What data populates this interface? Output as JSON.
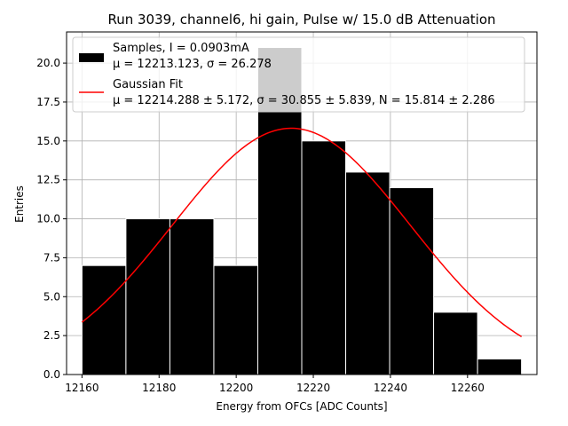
{
  "chart_data": {
    "type": "bar",
    "title": "Run 3039, channel6, hi gain, Pulse w/ 15.0 dB Attenuation",
    "xlabel": "Energy from OFCs [ADC Counts]",
    "ylabel": "Entries",
    "xlim": [
      12156,
      12278
    ],
    "ylim": [
      0,
      22
    ],
    "xticks": [
      12160,
      12180,
      12200,
      12220,
      12240,
      12260
    ],
    "yticks": [
      0,
      2.5,
      5.0,
      7.5,
      10.0,
      12.5,
      15.0,
      17.5,
      20.0
    ],
    "grid": true,
    "legend_position": "top",
    "bins": [
      {
        "x0": 12160.0,
        "x1": 12171.4,
        "value": 7
      },
      {
        "x0": 12171.4,
        "x1": 12182.8,
        "value": 10
      },
      {
        "x0": 12182.8,
        "x1": 12194.2,
        "value": 10
      },
      {
        "x0": 12194.2,
        "x1": 12205.6,
        "value": 7
      },
      {
        "x0": 12205.6,
        "x1": 12217.0,
        "value": 21
      },
      {
        "x0": 12217.0,
        "x1": 12228.4,
        "value": 15
      },
      {
        "x0": 12228.4,
        "x1": 12239.8,
        "value": 13
      },
      {
        "x0": 12239.8,
        "x1": 12251.2,
        "value": 12
      },
      {
        "x0": 12251.2,
        "x1": 12262.6,
        "value": 4
      },
      {
        "x0": 12262.6,
        "x1": 12274.0,
        "value": 1
      }
    ],
    "fit": {
      "type": "gaussian",
      "mu": 12214.288,
      "sigma": 30.855,
      "amplitude": 15.814,
      "x_range": [
        12160,
        12274
      ]
    },
    "series": [
      {
        "name": "Samples, I = 0.0903mA",
        "color": "#000000",
        "kind": "histogram"
      },
      {
        "name": "Gaussian Fit",
        "color": "#ff0000",
        "kind": "line"
      }
    ],
    "legend": [
      {
        "line1": "Samples, I = 0.0903mA",
        "line2": "μ = 12213.123, σ = 26.278"
      },
      {
        "line1": "Gaussian Fit",
        "line2": "μ = 12214.288 ± 5.172, σ = 30.855 ± 5.839, N = 15.814 ± 2.286"
      }
    ],
    "colors": {
      "bars": "#000000",
      "bar_edge": "#ffffff",
      "fit": "#ff0000",
      "grid": "#b0b0b0"
    }
  }
}
